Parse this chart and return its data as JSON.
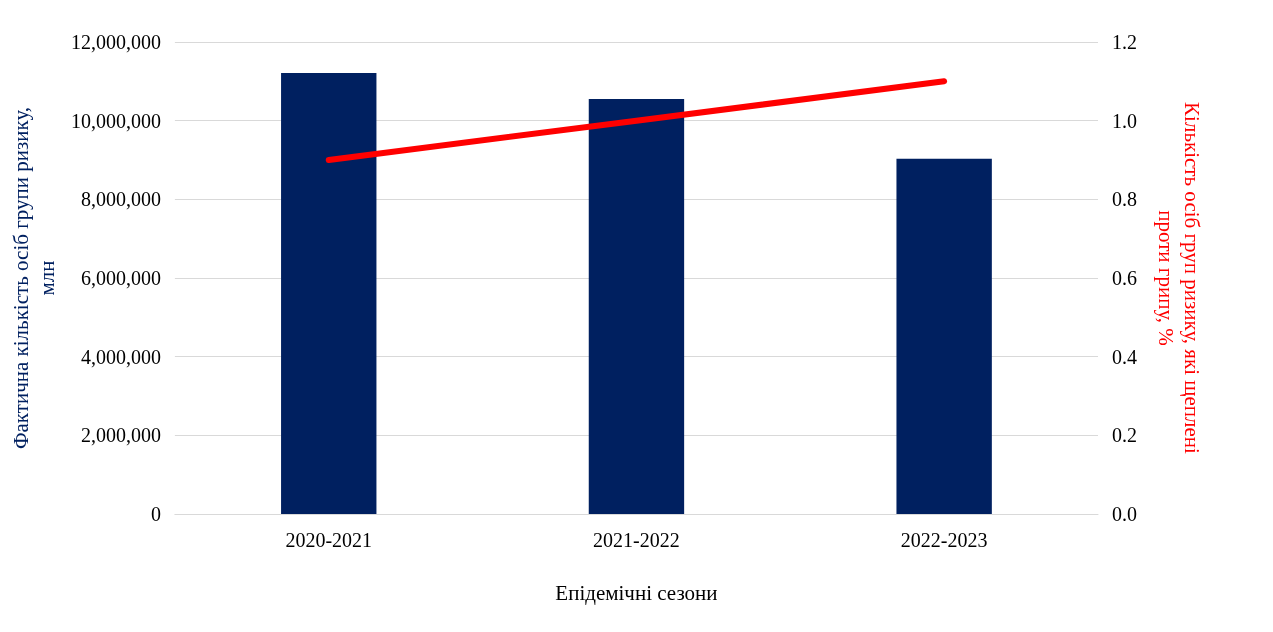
{
  "chart_data": {
    "type": "bar",
    "xlabel": "Епідемічні сезони",
    "ylabel": "Фактична кількість осіб групи ризику,\nмлн",
    "y2label": "Кількість осіб груп ризику, які щеплені\nпроти грипу, %",
    "categories": [
      "2020-2021",
      "2021-2022",
      "2022-2023"
    ],
    "series": [
      {
        "color": "#002060",
        "values": [
          11210000,
          10550000,
          9030000
        ]
      },
      {
        "type": "line",
        "axis": "y2",
        "color": "#ff0000",
        "values": [
          0.9,
          1.0,
          1.1
        ]
      }
    ],
    "ylim": [
      0,
      12000000
    ],
    "yticks": [
      {
        "value": 0,
        "label": "0"
      },
      {
        "value": 2000000,
        "label": "2,000,000"
      },
      {
        "value": 4000000,
        "label": "4,000,000"
      },
      {
        "value": 6000000,
        "label": "6,000,000"
      },
      {
        "value": 8000000,
        "label": "8,000,000"
      },
      {
        "value": 10000000,
        "label": "10,000,000"
      },
      {
        "value": 12000000,
        "label": "12,000,000"
      }
    ],
    "y2lim": [
      0,
      1.2
    ],
    "y2ticks": [
      {
        "value": 0,
        "label": "0.0"
      },
      {
        "value": 0.2,
        "label": "0.2"
      },
      {
        "value": 0.4,
        "label": "0.4"
      },
      {
        "value": 0.6,
        "label": "0.6"
      },
      {
        "value": 0.8,
        "label": "0.8"
      },
      {
        "value": 1,
        "label": "1.0"
      },
      {
        "value": 1.2,
        "label": "1.2"
      }
    ],
    "grid": "y",
    "marker": "none"
  }
}
